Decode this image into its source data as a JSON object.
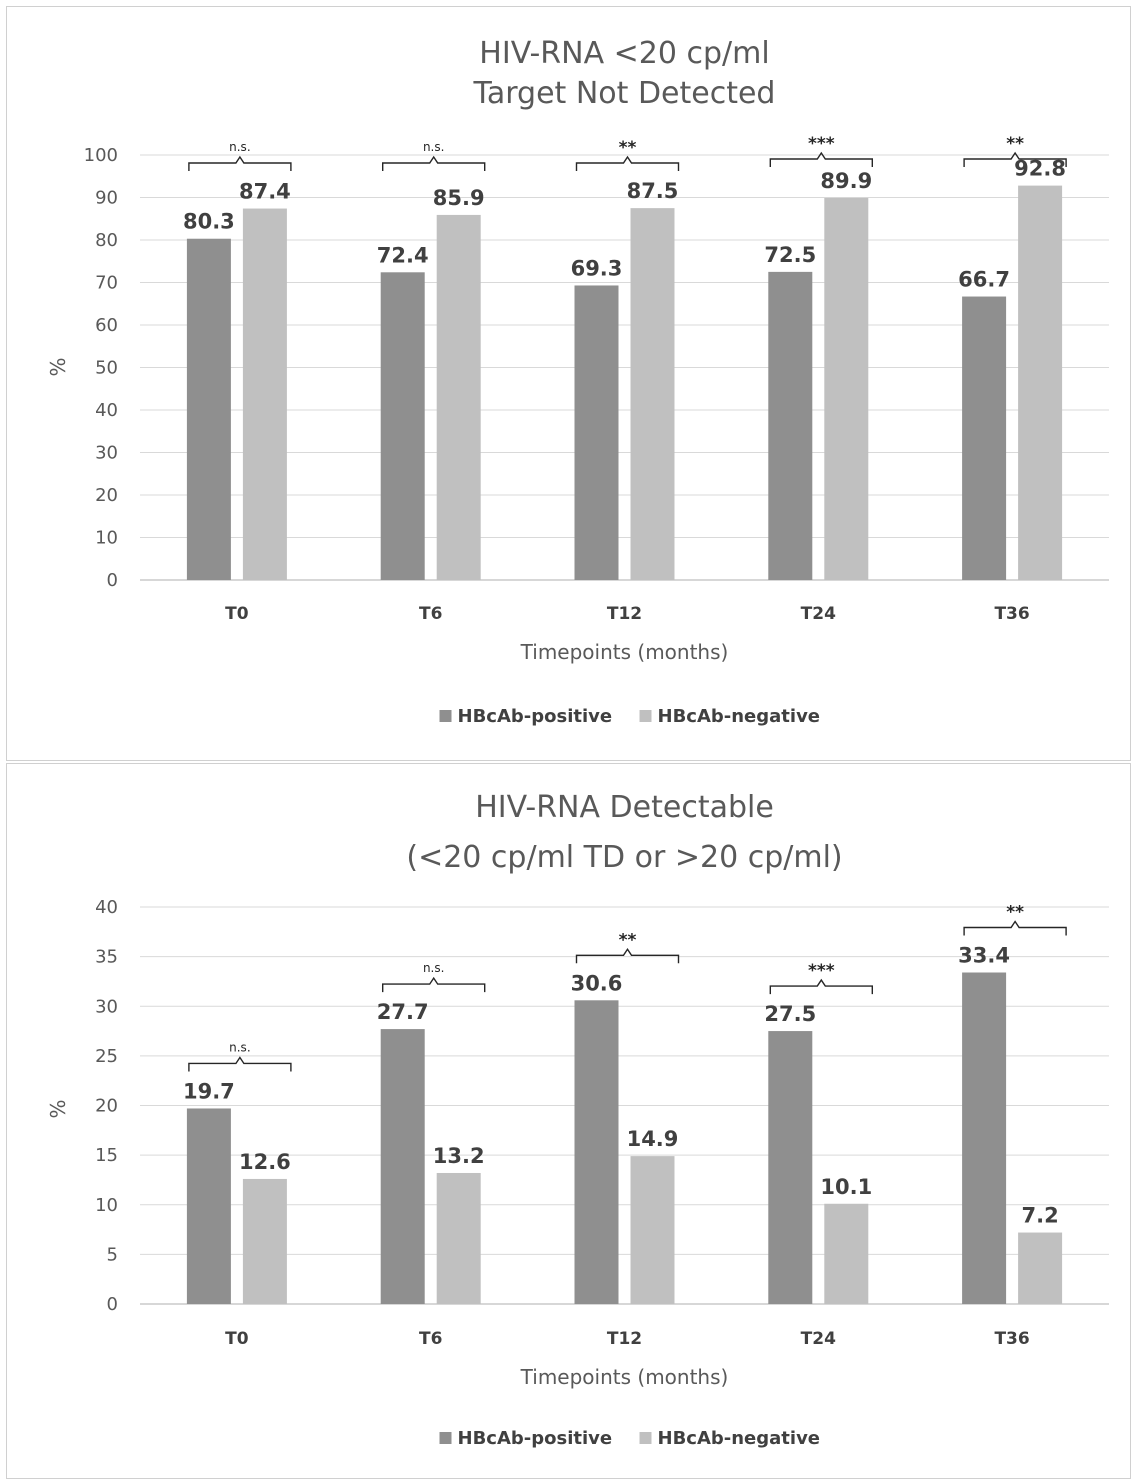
{
  "chart_data": [
    {
      "type": "bar",
      "title_lines": [
        "HIV-RNA <20 cp/ml",
        "Target Not Detected"
      ],
      "xlabel": "Timepoints (months)",
      "ylabel": "%",
      "ylim": [
        0,
        100
      ],
      "ytick_step": 10,
      "categories": [
        "T0",
        "T6",
        "T12",
        "T24",
        "T36"
      ],
      "series": [
        {
          "name": "HBcAb-positive",
          "color": "#8f8f8f",
          "values": [
            80.3,
            72.4,
            69.3,
            72.5,
            66.7
          ]
        },
        {
          "name": "HBcAb-negative",
          "color": "#c0c0c0",
          "values": [
            87.4,
            85.9,
            87.5,
            89.9,
            92.8
          ]
        }
      ],
      "significance": [
        "n.s.",
        "n.s.",
        "**",
        "***",
        "**"
      ],
      "grid": true,
      "legend": "bottom"
    },
    {
      "type": "bar",
      "title_lines": [
        "HIV-RNA Detectable",
        "(<20 cp/ml TD or >20 cp/ml)"
      ],
      "xlabel": "Timepoints (months)",
      "ylabel": "%",
      "ylim": [
        0,
        40
      ],
      "ytick_step": 5,
      "categories": [
        "T0",
        "T6",
        "T12",
        "T24",
        "T36"
      ],
      "series": [
        {
          "name": "HBcAb-positive",
          "color": "#8f8f8f",
          "values": [
            19.7,
            27.7,
            30.6,
            27.5,
            33.4
          ]
        },
        {
          "name": "HBcAb-negative",
          "color": "#c0c0c0",
          "values": [
            12.6,
            13.2,
            14.9,
            10.1,
            7.2
          ]
        }
      ],
      "significance": [
        "n.s.",
        "n.s.",
        "**",
        "***",
        "**"
      ],
      "grid": true,
      "legend": "bottom"
    }
  ]
}
